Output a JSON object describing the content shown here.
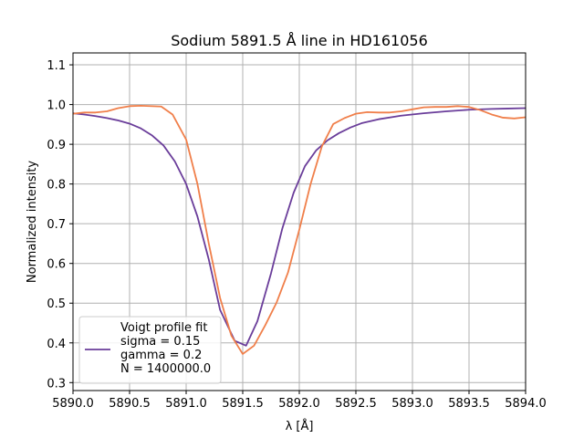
{
  "chart_data": {
    "type": "line",
    "title": "Sodium 5891.5 Å line in HD161056",
    "xlabel": "λ [Å]",
    "ylabel": "Normalized intensity",
    "xlim": [
      5890.0,
      5894.0
    ],
    "ylim": [
      0.28,
      1.13
    ],
    "xticks": [
      {
        "value": 5890.0,
        "label": "5890.0"
      },
      {
        "value": 5890.5,
        "label": "5890.5"
      },
      {
        "value": 5891.0,
        "label": "5891.0"
      },
      {
        "value": 5891.5,
        "label": "5891.5"
      },
      {
        "value": 5892.0,
        "label": "5892.0"
      },
      {
        "value": 5892.5,
        "label": "5892.5"
      },
      {
        "value": 5893.0,
        "label": "5893.0"
      },
      {
        "value": 5893.5,
        "label": "5893.5"
      },
      {
        "value": 5894.0,
        "label": "5894.0"
      }
    ],
    "yticks": [
      {
        "value": 0.3,
        "label": "0.3"
      },
      {
        "value": 0.4,
        "label": "0.4"
      },
      {
        "value": 0.5,
        "label": "0.5"
      },
      {
        "value": 0.6,
        "label": "0.6"
      },
      {
        "value": 0.7,
        "label": "0.7"
      },
      {
        "value": 0.8,
        "label": "0.8"
      },
      {
        "value": 0.9,
        "label": "0.9"
      },
      {
        "value": 1.0,
        "label": "1.0"
      },
      {
        "value": 1.1,
        "label": "1.1"
      }
    ],
    "grid": true,
    "legend": {
      "placement": "lower-left",
      "entries": [
        {
          "series_index": 0,
          "lines": [
            "Voigt profile fit",
            "sigma = 0.15",
            "gamma = 0.2",
            "N = 1400000.0"
          ]
        }
      ]
    },
    "series": [
      {
        "color": "#6a3d9a",
        "points": [
          [
            5890.0,
            0.978
          ],
          [
            5890.1,
            0.975
          ],
          [
            5890.2,
            0.971
          ],
          [
            5890.3,
            0.966
          ],
          [
            5890.4,
            0.96
          ],
          [
            5890.5,
            0.952
          ],
          [
            5890.6,
            0.94
          ],
          [
            5890.7,
            0.922
          ],
          [
            5890.8,
            0.897
          ],
          [
            5890.9,
            0.857
          ],
          [
            5891.0,
            0.8
          ],
          [
            5891.1,
            0.718
          ],
          [
            5891.2,
            0.61
          ],
          [
            5891.3,
            0.483
          ],
          [
            5891.43,
            0.405
          ],
          [
            5891.53,
            0.393
          ],
          [
            5891.63,
            0.455
          ],
          [
            5891.75,
            0.575
          ],
          [
            5891.85,
            0.688
          ],
          [
            5891.95,
            0.778
          ],
          [
            5892.05,
            0.845
          ],
          [
            5892.15,
            0.885
          ],
          [
            5892.25,
            0.91
          ],
          [
            5892.35,
            0.928
          ],
          [
            5892.45,
            0.942
          ],
          [
            5892.55,
            0.953
          ],
          [
            5892.7,
            0.963
          ],
          [
            5892.9,
            0.972
          ],
          [
            5893.1,
            0.978
          ],
          [
            5893.3,
            0.983
          ],
          [
            5893.5,
            0.987
          ],
          [
            5893.7,
            0.989
          ],
          [
            5893.85,
            0.99
          ],
          [
            5894.0,
            0.991
          ]
        ]
      },
      {
        "color": "#f07f4a",
        "points": [
          [
            5890.0,
            0.977
          ],
          [
            5890.1,
            0.98
          ],
          [
            5890.2,
            0.98
          ],
          [
            5890.3,
            0.983
          ],
          [
            5890.4,
            0.991
          ],
          [
            5890.5,
            0.996
          ],
          [
            5890.6,
            0.997
          ],
          [
            5890.78,
            0.995
          ],
          [
            5890.88,
            0.975
          ],
          [
            5891.0,
            0.912
          ],
          [
            5891.1,
            0.8
          ],
          [
            5891.2,
            0.65
          ],
          [
            5891.3,
            0.513
          ],
          [
            5891.4,
            0.418
          ],
          [
            5891.5,
            0.372
          ],
          [
            5891.6,
            0.393
          ],
          [
            5891.7,
            0.445
          ],
          [
            5891.8,
            0.502
          ],
          [
            5891.9,
            0.577
          ],
          [
            5892.0,
            0.685
          ],
          [
            5892.1,
            0.8
          ],
          [
            5892.2,
            0.895
          ],
          [
            5892.3,
            0.951
          ],
          [
            5892.4,
            0.966
          ],
          [
            5892.5,
            0.977
          ],
          [
            5892.6,
            0.981
          ],
          [
            5892.7,
            0.98
          ],
          [
            5892.8,
            0.98
          ],
          [
            5892.9,
            0.983
          ],
          [
            5893.0,
            0.988
          ],
          [
            5893.1,
            0.993
          ],
          [
            5893.2,
            0.994
          ],
          [
            5893.3,
            0.994
          ],
          [
            5893.4,
            0.996
          ],
          [
            5893.5,
            0.994
          ],
          [
            5893.6,
            0.986
          ],
          [
            5893.7,
            0.975
          ],
          [
            5893.8,
            0.967
          ],
          [
            5893.9,
            0.965
          ],
          [
            5894.0,
            0.968
          ]
        ]
      }
    ]
  }
}
